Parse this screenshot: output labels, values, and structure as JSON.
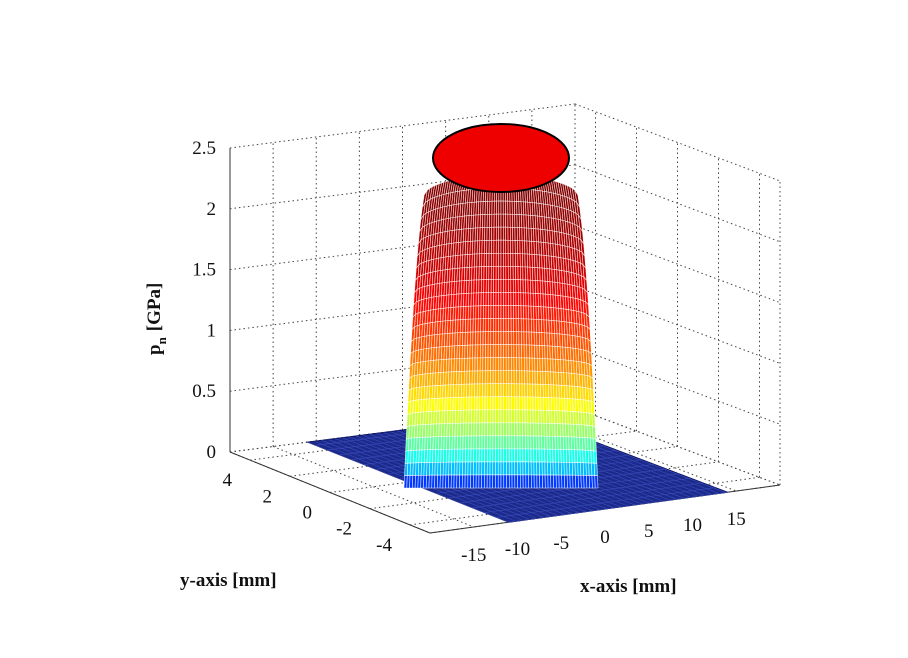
{
  "chart_data": {
    "type": "surface3d",
    "title": "",
    "xlabel": "x-axis [mm]",
    "ylabel": "y-axis [mm]",
    "zlabel_main": "p",
    "zlabel_sub": "n",
    "zlabel_unit": "[GPa]",
    "xlim": [
      -20,
      20
    ],
    "ylim": [
      -5,
      5
    ],
    "zlim": [
      0,
      2.5
    ],
    "x_ticks": [
      "-15",
      "-10",
      "-5",
      "0",
      "5",
      "10",
      "15"
    ],
    "x_tick_values": [
      -15,
      -10,
      -5,
      0,
      5,
      10,
      15
    ],
    "y_ticks": [
      "4",
      "2",
      "0",
      "-2",
      "-4"
    ],
    "y_tick_values": [
      4,
      2,
      0,
      -2,
      -4
    ],
    "z_ticks": [
      "0",
      "0.5",
      "1",
      "1.5",
      "2",
      "2.5"
    ],
    "z_tick_values": [
      0,
      0.5,
      1,
      1.5,
      2,
      2.5
    ],
    "grid": true,
    "colormap": "jet",
    "surface": {
      "shape": "semi-ellipsoidal pressure distribution",
      "peak_pressure": 2.2,
      "contact_semi_axis_x": 9,
      "contact_semi_axis_y": 4,
      "floor_value": 0
    },
    "colors": {
      "cap_fill": "#ee0000",
      "floor": "#1c2a8c",
      "grid": "#444444"
    }
  }
}
